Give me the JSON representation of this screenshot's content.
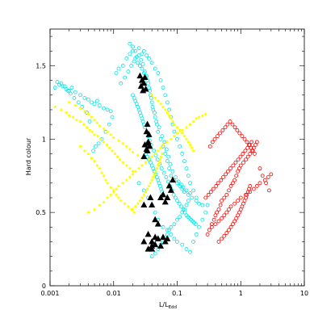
{
  "chart_data": {
    "type": "scatter",
    "title": "",
    "xlabel": "L/L",
    "xlabel_sub": "Edd",
    "ylabel": "Hard colour",
    "xscale": "log",
    "xlim": [
      0.001,
      10
    ],
    "ylim": [
      0,
      1.75
    ],
    "grid": false,
    "legend": "none",
    "x_ticks": [
      0.001,
      0.01,
      0.1,
      1,
      10
    ],
    "x_tick_labels": [
      "0.001",
      "0.01",
      "0.1",
      "1",
      "10"
    ],
    "y_ticks": [
      0,
      0.5,
      1,
      1.5
    ],
    "y_tick_labels": [
      "0",
      "0.5",
      "1",
      "1.5"
    ],
    "series": [
      {
        "marker": "open-circle",
        "color": "#00e5e5",
        "x": [
          0.0012,
          0.0014,
          0.0016,
          0.0018,
          0.002,
          0.0022,
          0.0025,
          0.003,
          0.0035,
          0.004,
          0.0045,
          0.005,
          0.0055,
          0.006,
          0.007,
          0.008,
          0.009,
          0.0095,
          0.0085,
          0.0075,
          0.0065,
          0.0058,
          0.0052,
          0.0048,
          0.0042,
          0.0038,
          0.0032,
          0.0028,
          0.0024,
          0.0021,
          0.0019,
          0.0017,
          0.0015,
          0.0013,
          0.011,
          0.012,
          0.014,
          0.016,
          0.018,
          0.02,
          0.022,
          0.024,
          0.026,
          0.028,
          0.03,
          0.032,
          0.034,
          0.036,
          0.038,
          0.04,
          0.042,
          0.045,
          0.048,
          0.05,
          0.055,
          0.06,
          0.065,
          0.07,
          0.075,
          0.08,
          0.09,
          0.1,
          0.11,
          0.12,
          0.13,
          0.15,
          0.17,
          0.2,
          0.22,
          0.25,
          0.013,
          0.015,
          0.017,
          0.019,
          0.021,
          0.023,
          0.025,
          0.027,
          0.029,
          0.031,
          0.033,
          0.035,
          0.037,
          0.039,
          0.041,
          0.044,
          0.047,
          0.052,
          0.058,
          0.063,
          0.068,
          0.073,
          0.078,
          0.085,
          0.095,
          0.105,
          0.115,
          0.125,
          0.14,
          0.16,
          0.018,
          0.02,
          0.022,
          0.025,
          0.028,
          0.03,
          0.033,
          0.036,
          0.04,
          0.045,
          0.05,
          0.055,
          0.06,
          0.065,
          0.07,
          0.075,
          0.08,
          0.085,
          0.09,
          0.1,
          0.11,
          0.12,
          0.13,
          0.14,
          0.15,
          0.16,
          0.18,
          0.2,
          0.025,
          0.03,
          0.035,
          0.04,
          0.045,
          0.05,
          0.06,
          0.07,
          0.08,
          0.09,
          0.1,
          0.12,
          0.14,
          0.16,
          0.18,
          0.2,
          0.22,
          0.25,
          0.28,
          0.3,
          0.04,
          0.045,
          0.05,
          0.055,
          0.06,
          0.065,
          0.07,
          0.075,
          0.08,
          0.09,
          0.1,
          0.11,
          0.12,
          0.13,
          0.14,
          0.15,
          0.032,
          0.034,
          0.036,
          0.038,
          0.04,
          0.042,
          0.044,
          0.046,
          0.048,
          0.05,
          0.052,
          0.054,
          0.056,
          0.058,
          0.06,
          0.02,
          0.021,
          0.022,
          0.023,
          0.024,
          0.025,
          0.026,
          0.027,
          0.028,
          0.029,
          0.03,
          0.031,
          0.033,
          0.035,
          0.037,
          0.039,
          0.043,
          0.046,
          0.049,
          0.053,
          0.057,
          0.062,
          0.067,
          0.072,
          0.077,
          0.083,
          0.088,
          0.094,
          0.1,
          0.108,
          0.116,
          0.124,
          0.132,
          0.14,
          0.148,
          0.156,
          0.165,
          0.175,
          0.185,
          0.195
        ],
        "y": [
          1.35,
          1.37,
          1.36,
          1.34,
          1.33,
          1.35,
          1.32,
          1.3,
          1.28,
          1.27,
          1.25,
          1.24,
          1.26,
          1.23,
          1.21,
          1.2,
          1.19,
          1.15,
          1.1,
          1.05,
          1.0,
          0.97,
          0.95,
          0.92,
          1.12,
          1.18,
          1.22,
          1.25,
          1.28,
          1.31,
          1.33,
          1.36,
          1.38,
          1.39,
          1.45,
          1.48,
          1.5,
          1.55,
          1.58,
          1.6,
          1.55,
          1.52,
          1.5,
          1.48,
          1.45,
          1.42,
          1.4,
          1.35,
          1.3,
          1.25,
          1.2,
          1.15,
          1.1,
          1.05,
          1.0,
          0.95,
          0.9,
          0.85,
          0.8,
          0.75,
          0.72,
          0.7,
          0.68,
          0.66,
          0.64,
          0.62,
          0.6,
          0.58,
          0.56,
          0.55,
          1.38,
          1.42,
          1.46,
          1.5,
          1.53,
          1.56,
          1.57,
          1.54,
          1.51,
          1.46,
          1.43,
          1.38,
          1.33,
          1.28,
          1.22,
          1.18,
          1.12,
          1.08,
          1.02,
          0.98,
          0.93,
          0.88,
          0.83,
          0.78,
          0.74,
          0.71,
          0.69,
          0.67,
          0.65,
          0.63,
          1.65,
          1.63,
          1.6,
          1.62,
          1.58,
          1.6,
          1.57,
          1.55,
          1.52,
          1.48,
          1.45,
          1.4,
          1.35,
          1.3,
          1.25,
          1.2,
          1.15,
          1.1,
          1.05,
          1.0,
          0.95,
          0.9,
          0.85,
          0.8,
          0.75,
          0.7,
          0.65,
          0.6,
          0.7,
          0.65,
          0.6,
          0.55,
          0.5,
          0.45,
          0.4,
          0.38,
          0.35,
          0.32,
          0.3,
          0.28,
          0.25,
          0.23,
          0.3,
          0.35,
          0.4,
          0.45,
          0.5,
          0.55,
          0.2,
          0.22,
          0.25,
          0.28,
          0.3,
          0.33,
          0.35,
          0.38,
          0.4,
          0.42,
          0.45,
          0.47,
          0.5,
          0.52,
          0.55,
          0.58,
          0.9,
          0.88,
          0.86,
          0.84,
          0.82,
          0.8,
          0.78,
          0.76,
          0.74,
          0.72,
          0.7,
          0.68,
          0.66,
          0.64,
          0.62,
          1.3,
          1.28,
          1.26,
          1.24,
          1.22,
          1.2,
          1.18,
          1.16,
          1.14,
          1.12,
          1.1,
          1.08,
          1.05,
          1.02,
          0.99,
          0.96,
          0.92,
          0.89,
          0.86,
          0.83,
          0.8,
          0.77,
          0.74,
          0.71,
          0.68,
          0.65,
          0.62,
          0.6,
          0.58,
          0.56,
          0.54,
          0.52,
          0.5,
          0.48,
          0.47,
          0.46,
          0.45,
          0.44,
          0.43,
          0.42
        ]
      },
      {
        "marker": "filled-circle",
        "color": "#ffff00",
        "x": [
          0.0012,
          0.0015,
          0.0018,
          0.002,
          0.0023,
          0.0026,
          0.003,
          0.0034,
          0.0038,
          0.0042,
          0.0046,
          0.005,
          0.0056,
          0.0062,
          0.007,
          0.0078,
          0.0086,
          0.0095,
          0.0105,
          0.0115,
          0.0125,
          0.014,
          0.016,
          0.018,
          0.02,
          0.003,
          0.0035,
          0.004,
          0.0045,
          0.005,
          0.0055,
          0.006,
          0.0065,
          0.007,
          0.0075,
          0.008,
          0.009,
          0.01,
          0.011,
          0.012,
          0.013,
          0.015,
          0.017,
          0.019,
          0.021,
          0.004,
          0.005,
          0.006,
          0.007,
          0.008,
          0.009,
          0.01,
          0.011,
          0.012,
          0.014,
          0.016,
          0.018,
          0.02,
          0.022,
          0.025,
          0.028,
          0.032,
          0.036,
          0.04,
          0.045,
          0.05,
          0.055,
          0.06,
          0.07,
          0.08,
          0.09,
          0.1,
          0.12,
          0.14,
          0.16,
          0.18,
          0.2,
          0.22,
          0.25,
          0.28,
          0.002,
          0.0025,
          0.003,
          0.0035,
          0.004,
          0.0045,
          0.005,
          0.0055,
          0.006,
          0.007,
          0.008,
          0.009,
          0.01,
          0.012,
          0.014,
          0.016,
          0.018,
          0.02,
          0.024,
          0.028,
          0.04,
          0.045,
          0.05,
          0.055,
          0.06,
          0.065,
          0.07,
          0.075,
          0.08,
          0.085,
          0.09,
          0.1,
          0.11,
          0.12,
          0.13,
          0.14,
          0.15,
          0.16,
          0.17,
          0.18,
          0.02,
          0.022,
          0.024,
          0.026,
          0.028,
          0.03,
          0.032,
          0.034,
          0.036,
          0.038,
          0.04,
          0.042,
          0.044,
          0.046,
          0.048,
          0.05,
          0.052,
          0.054,
          0.056,
          0.058
        ],
        "y": [
          1.22,
          1.2,
          1.18,
          1.16,
          1.15,
          1.13,
          1.12,
          1.1,
          1.08,
          1.06,
          1.05,
          1.03,
          1.02,
          1.0,
          0.98,
          0.96,
          0.94,
          0.92,
          0.9,
          0.88,
          0.86,
          0.84,
          0.82,
          0.8,
          0.78,
          0.95,
          0.92,
          0.9,
          0.87,
          0.85,
          0.82,
          0.8,
          0.77,
          0.75,
          0.72,
          0.7,
          0.67,
          0.65,
          0.62,
          0.6,
          0.58,
          0.56,
          0.54,
          0.52,
          0.5,
          0.5,
          0.52,
          0.55,
          0.57,
          0.6,
          0.62,
          0.64,
          0.66,
          0.68,
          0.7,
          0.72,
          0.74,
          0.76,
          0.78,
          0.8,
          0.82,
          0.84,
          0.86,
          0.88,
          0.9,
          0.92,
          0.94,
          0.96,
          0.98,
          1.0,
          1.02,
          1.04,
          1.06,
          1.08,
          1.1,
          1.12,
          1.14,
          1.15,
          1.16,
          1.17,
          1.25,
          1.23,
          1.21,
          1.19,
          1.17,
          1.15,
          1.13,
          1.11,
          1.09,
          1.07,
          1.05,
          1.03,
          1.01,
          0.99,
          0.97,
          0.95,
          0.93,
          0.91,
          0.89,
          0.87,
          1.3,
          1.28,
          1.26,
          1.24,
          1.22,
          1.2,
          1.18,
          1.16,
          1.14,
          1.12,
          1.1,
          1.08,
          1.06,
          1.04,
          1.02,
          1.0,
          0.98,
          0.96,
          0.94,
          0.92,
          0.52,
          0.54,
          0.56,
          0.58,
          0.6,
          0.62,
          0.64,
          0.66,
          0.68,
          0.7,
          0.72,
          0.74,
          0.76,
          0.78,
          0.8,
          0.82,
          0.84,
          0.86,
          0.88,
          0.9
        ]
      },
      {
        "marker": "open-circle",
        "color": "#ff0000",
        "x": [
          0.3,
          0.32,
          0.35,
          0.38,
          0.4,
          0.42,
          0.45,
          0.48,
          0.5,
          0.55,
          0.6,
          0.65,
          0.7,
          0.75,
          0.8,
          0.85,
          0.9,
          0.95,
          1.0,
          1.1,
          1.2,
          1.3,
          1.4,
          1.5,
          1.6,
          1.7,
          1.8,
          2.0,
          2.2,
          2.5,
          2.8,
          0.33,
          0.36,
          0.39,
          0.43,
          0.47,
          0.52,
          0.57,
          0.62,
          0.68,
          0.74,
          0.81,
          0.88,
          0.96,
          1.05,
          1.15,
          1.25,
          1.35,
          1.45,
          1.55,
          1.65,
          0.28,
          0.31,
          0.34,
          0.37,
          0.41,
          0.44,
          0.49,
          0.53,
          0.58,
          0.63,
          0.69,
          0.76,
          0.83,
          0.91,
          0.99,
          1.08,
          1.18,
          1.28,
          1.38,
          1.48,
          0.35,
          0.4,
          0.45,
          0.5,
          0.55,
          0.6,
          0.65,
          0.7,
          0.8,
          0.9,
          1.0,
          1.2,
          1.4,
          1.6,
          1.8,
          2.0,
          2.4,
          2.7,
          3.0,
          0.45,
          0.5,
          0.55,
          0.6,
          0.65,
          0.7,
          0.75,
          0.8,
          0.85,
          0.9,
          0.95,
          1.0,
          1.05,
          1.1,
          1.15,
          1.2,
          1.25,
          1.3,
          1.35,
          1.4
        ],
        "y": [
          0.35,
          0.38,
          0.42,
          0.45,
          0.48,
          0.5,
          0.52,
          0.55,
          0.58,
          0.6,
          0.62,
          0.65,
          0.68,
          0.7,
          0.72,
          0.75,
          0.78,
          0.8,
          0.82,
          0.84,
          0.86,
          0.88,
          0.9,
          0.92,
          0.94,
          0.96,
          0.98,
          0.8,
          0.75,
          0.7,
          0.65,
          0.95,
          0.98,
          1.0,
          1.02,
          1.04,
          1.06,
          1.08,
          1.1,
          1.12,
          1.1,
          1.08,
          1.06,
          1.04,
          1.02,
          1.0,
          0.98,
          0.96,
          0.94,
          0.92,
          0.9,
          0.6,
          0.62,
          0.64,
          0.66,
          0.68,
          0.7,
          0.72,
          0.74,
          0.76,
          0.78,
          0.8,
          0.82,
          0.84,
          0.86,
          0.88,
          0.9,
          0.92,
          0.94,
          0.96,
          0.98,
          0.4,
          0.42,
          0.44,
          0.46,
          0.48,
          0.5,
          0.52,
          0.54,
          0.56,
          0.58,
          0.6,
          0.62,
          0.64,
          0.66,
          0.68,
          0.7,
          0.72,
          0.74,
          0.76,
          0.3,
          0.32,
          0.34,
          0.36,
          0.38,
          0.4,
          0.42,
          0.44,
          0.46,
          0.48,
          0.5,
          0.52,
          0.54,
          0.56,
          0.58,
          0.6,
          0.62,
          0.64,
          0.66,
          0.68
        ]
      },
      {
        "marker": "filled-triangle",
        "color": "#000000",
        "x": [
          0.026,
          0.028,
          0.03,
          0.027,
          0.029,
          0.031,
          0.032,
          0.034,
          0.036,
          0.033,
          0.035,
          0.037,
          0.031,
          0.033,
          0.035,
          0.038,
          0.04,
          0.03,
          0.034,
          0.06,
          0.065,
          0.07,
          0.075,
          0.08,
          0.085,
          0.055,
          0.05,
          0.045,
          0.035,
          0.04,
          0.045,
          0.05,
          0.055,
          0.06,
          0.065,
          0.07,
          0.035,
          0.04,
          0.045,
          0.03,
          0.04,
          0.03
        ],
        "y": [
          1.43,
          1.4,
          1.38,
          1.36,
          1.33,
          1.42,
          1.34,
          1.1,
          1.03,
          1.05,
          0.98,
          0.95,
          0.96,
          0.93,
          0.97,
          0.6,
          0.55,
          0.88,
          0.92,
          0.62,
          0.57,
          0.6,
          0.68,
          0.65,
          0.72,
          0.6,
          0.42,
          0.45,
          0.35,
          0.3,
          0.28,
          0.32,
          0.27,
          0.33,
          0.3,
          0.32,
          0.25,
          0.27,
          0.33,
          0.3,
          0.25,
          0.55
        ]
      }
    ]
  }
}
